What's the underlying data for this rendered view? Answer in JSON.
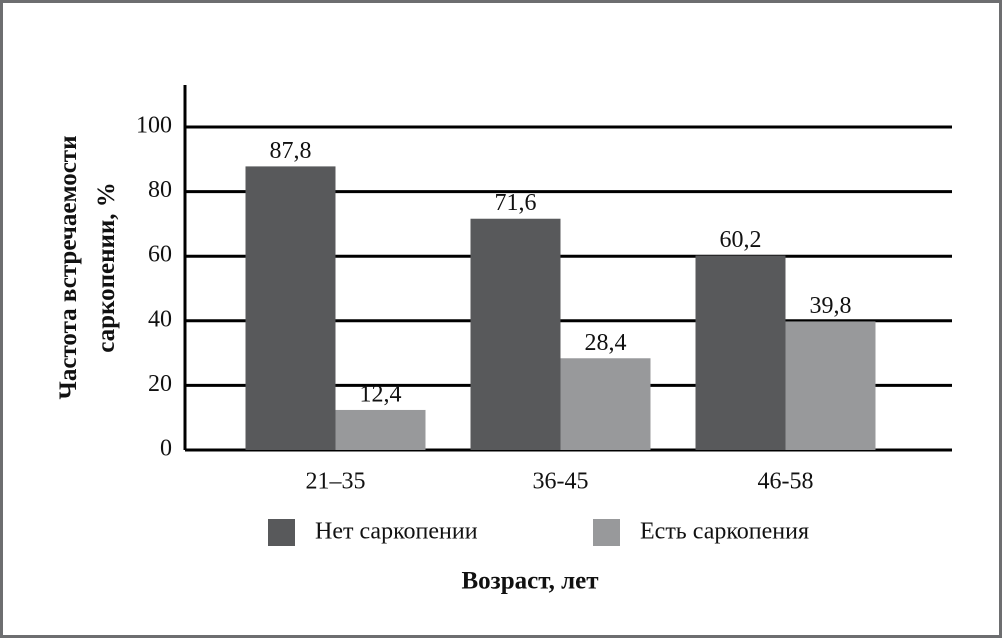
{
  "chart_data": {
    "type": "bar",
    "y_label": [
      "Частота встречаемости",
      "саркопении, %"
    ],
    "x_label": "Возраст, лет",
    "categories": [
      "21–35",
      "36-45",
      "46-58"
    ],
    "series": [
      {
        "name": "Нет саркопении",
        "color": "#58595b",
        "values": [
          87.8,
          71.6,
          60.2
        ],
        "value_labels": [
          "87,8",
          "71,6",
          "60,2"
        ]
      },
      {
        "name": "Есть саркопения",
        "color": "#98999b",
        "values": [
          12.4,
          28.4,
          39.8
        ],
        "value_labels": [
          "12,4",
          "28,4",
          "39,8"
        ]
      }
    ],
    "ylim": [
      0,
      113
    ],
    "yticks": [
      0,
      20,
      40,
      60,
      80,
      100
    ],
    "grid": true
  }
}
